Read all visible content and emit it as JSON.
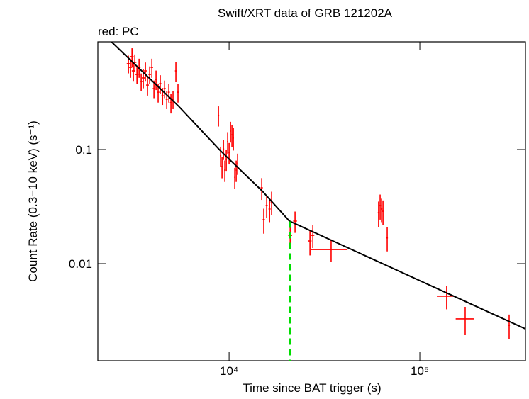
{
  "chart_data": {
    "type": "scatter",
    "title": "Swift/XRT data of GRB 121202A",
    "legend_text": "red: PC",
    "x_label": "Time since BAT trigger (s)",
    "y_label": "Count Rate (0.3−10 keV) (s⁻¹)",
    "log_x": true,
    "log_y": true,
    "xlim": [
      2050,
      358000
    ],
    "ylim": [
      0.00141,
      0.879
    ],
    "xticks": [
      {
        "value": 10000,
        "label": "10⁴"
      },
      {
        "value": 100000,
        "label": "10⁵"
      }
    ],
    "yticks": [
      0.01,
      0.1
    ],
    "series": [
      {
        "color": "#ff0000",
        "x": [
          2965,
          3042,
          3097,
          3148,
          3204,
          3288,
          3373,
          3459,
          3548,
          3640,
          3733,
          3834,
          3936,
          4036,
          4140,
          4246,
          4355,
          4477,
          4592,
          4710,
          4831,
          4955,
          5082,
          5260,
          5395,
          8793,
          9024,
          9180,
          9339,
          9500,
          9664,
          9830,
          10000,
          10172,
          10348,
          10527,
          10709,
          10893,
          11081,
          14830,
          15200,
          15740,
          16300,
          16710,
          20900,
          22170,
          26550,
          27480,
          34270,
          60800,
          61920,
          63000,
          64100,
          67450,
          138300,
          172900,
          294000
        ],
        "xerr": [
          60,
          60,
          60,
          60,
          60,
          60,
          60,
          60,
          60,
          60,
          60,
          60,
          60,
          60,
          60,
          60,
          60,
          60,
          60,
          60,
          60,
          60,
          60,
          60,
          60,
          80,
          80,
          80,
          80,
          80,
          80,
          80,
          80,
          80,
          80,
          80,
          80,
          80,
          80,
          200,
          200,
          200,
          200,
          200,
          500,
          500,
          500,
          500,
          7500,
          600,
          600,
          600,
          600,
          600,
          15500,
          18700,
          3000
        ],
        "values": [
          0.565,
          0.525,
          0.652,
          0.489,
          0.581,
          0.455,
          0.525,
          0.394,
          0.424,
          0.489,
          0.367,
          0.455,
          0.525,
          0.342,
          0.412,
          0.318,
          0.378,
          0.296,
          0.342,
          0.276,
          0.318,
          0.257,
          0.276,
          0.489,
          0.318,
          0.199,
          0.088,
          0.071,
          0.101,
          0.066,
          0.082,
          0.117,
          0.094,
          0.145,
          0.135,
          0.126,
          0.057,
          0.066,
          0.076,
          0.0462,
          0.0243,
          0.0323,
          0.0301,
          0.0347,
          0.0177,
          0.0236,
          0.0158,
          0.0177,
          0.0133,
          0.028,
          0.0323,
          0.0301,
          0.0288,
          0.0168,
          0.00518,
          0.00328,
          0.00288
        ],
        "yerr": [
          0.1,
          0.1,
          0.12,
          0.09,
          0.1,
          0.08,
          0.1,
          0.07,
          0.08,
          0.09,
          0.07,
          0.08,
          0.1,
          0.06,
          0.08,
          0.06,
          0.07,
          0.05,
          0.06,
          0.05,
          0.06,
          0.05,
          0.05,
          0.1,
          0.06,
          0.04,
          0.018,
          0.015,
          0.02,
          0.014,
          0.017,
          0.025,
          0.02,
          0.03,
          0.03,
          0.028,
          0.012,
          0.014,
          0.016,
          0.01,
          0.006,
          0.007,
          0.007,
          0.008,
          0.004,
          0.005,
          0.004,
          0.004,
          0.003,
          0.007,
          0.008,
          0.007,
          0.007,
          0.004,
          0.0012,
          0.0009,
          0.0007
        ]
      }
    ],
    "fit": {
      "color": "#000000",
      "x": [
        2415,
        5445,
        8950,
        14960,
        20710,
        358000
      ],
      "values": [
        0.879,
        0.239,
        0.0986,
        0.0431,
        0.0236,
        0.00268
      ]
    },
    "break_time": 20900,
    "break_color": "#00dd00"
  }
}
